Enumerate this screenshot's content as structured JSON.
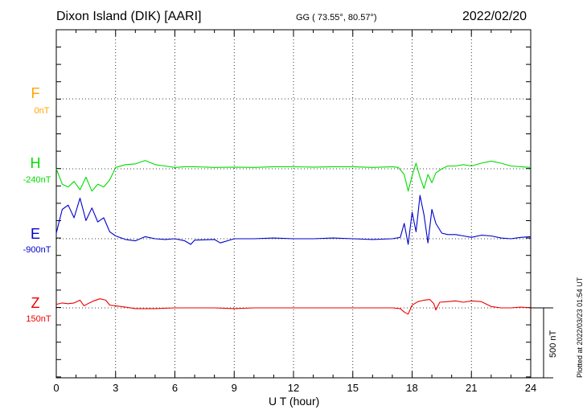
{
  "header": {
    "station": "Dixon Island (DIK)  [AARI]",
    "coords": "GG ( 73.55°,  80.57°)",
    "date": "2022/02/20"
  },
  "footer": {
    "plotted": "Plotted at 2022/03/23 01:54 UT"
  },
  "scale": {
    "label": "500 nT",
    "nT": 500
  },
  "components": [
    {
      "name": "F",
      "base": "0nT",
      "color": "#ffa500"
    },
    {
      "name": "H",
      "base": "-240nT",
      "color": "#00dd00"
    },
    {
      "name": "E",
      "base": "-900nT",
      "color": "#0000cc"
    },
    {
      "name": "Z",
      "base": "150nT",
      "color": "#ee0000"
    }
  ],
  "chart_data": {
    "type": "line",
    "xlabel": "U T (hour)",
    "xlim": [
      0,
      24
    ],
    "xticks": [
      0,
      3,
      6,
      9,
      12,
      15,
      18,
      21,
      24
    ],
    "grid": true,
    "series": [
      {
        "name": "H",
        "color": "#00dd00",
        "baseline_nT": -240,
        "x": [
          0,
          0.3,
          0.6,
          0.9,
          1.2,
          1.5,
          1.8,
          2.1,
          2.4,
          2.7,
          3.0,
          3.5,
          4.0,
          4.5,
          5.0,
          5.5,
          6.0,
          6.5,
          7.0,
          8.0,
          9.0,
          10.0,
          11.0,
          12.0,
          13.0,
          14.0,
          15.0,
          16.0,
          17.0,
          17.3,
          17.6,
          17.8,
          18.0,
          18.2,
          18.4,
          18.6,
          18.8,
          19.0,
          19.2,
          19.5,
          19.8,
          20.2,
          20.6,
          21.0,
          21.5,
          22.0,
          22.5,
          23.0,
          23.5,
          24.0
        ],
        "values": [
          0,
          -110,
          -130,
          -90,
          -150,
          -60,
          -160,
          -110,
          -130,
          -80,
          10,
          30,
          35,
          60,
          30,
          20,
          10,
          15,
          15,
          10,
          12,
          10,
          15,
          15,
          12,
          15,
          15,
          10,
          15,
          10,
          -40,
          -160,
          -50,
          40,
          -60,
          -140,
          -40,
          -100,
          -30,
          0,
          20,
          20,
          30,
          20,
          40,
          55,
          40,
          20,
          15,
          10
        ]
      },
      {
        "name": "E",
        "color": "#0000cc",
        "baseline_nT": -900,
        "x": [
          0,
          0.3,
          0.6,
          0.9,
          1.2,
          1.5,
          1.8,
          2.1,
          2.4,
          2.7,
          3.0,
          3.5,
          4.0,
          4.5,
          5.0,
          5.5,
          6.0,
          6.5,
          6.8,
          7.0,
          8.0,
          8.3,
          9.0,
          10.0,
          11.0,
          12.0,
          13.0,
          14.0,
          15.0,
          16.0,
          17.0,
          17.4,
          17.6,
          17.8,
          18.0,
          18.2,
          18.4,
          18.6,
          18.8,
          19.0,
          19.2,
          19.5,
          19.8,
          20.2,
          20.6,
          21.0,
          21.5,
          22.0,
          22.5,
          23.0,
          23.5,
          24.0
        ],
        "values": [
          40,
          210,
          240,
          150,
          290,
          130,
          220,
          120,
          150,
          50,
          20,
          -5,
          -15,
          15,
          0,
          -5,
          0,
          -15,
          -40,
          -10,
          -5,
          -30,
          0,
          0,
          5,
          0,
          0,
          5,
          0,
          -5,
          0,
          10,
          110,
          -40,
          190,
          50,
          310,
          170,
          -30,
          210,
          110,
          40,
          30,
          30,
          20,
          10,
          25,
          20,
          5,
          0,
          10,
          15
        ]
      },
      {
        "name": "Z",
        "color": "#ee0000",
        "baseline_nT": 150,
        "x": [
          0,
          0.3,
          0.6,
          0.9,
          1.2,
          1.4,
          1.6,
          1.9,
          2.2,
          2.5,
          2.7,
          3.0,
          3.5,
          4.0,
          5.0,
          6.0,
          7.0,
          8.0,
          9.0,
          10.0,
          11.0,
          12.0,
          13.0,
          14.0,
          15.0,
          16.0,
          17.0,
          17.4,
          17.6,
          17.8,
          18.0,
          18.3,
          18.6,
          18.9,
          19.1,
          19.2,
          19.4,
          19.8,
          20.2,
          20.6,
          21.0,
          21.5,
          22.0,
          22.5,
          23.0,
          23.5,
          24.0
        ],
        "values": [
          25,
          35,
          30,
          35,
          55,
          15,
          30,
          50,
          65,
          55,
          20,
          15,
          5,
          -5,
          -5,
          0,
          0,
          0,
          -5,
          0,
          0,
          0,
          0,
          0,
          0,
          0,
          0,
          -5,
          -30,
          -45,
          20,
          45,
          55,
          60,
          30,
          -15,
          40,
          45,
          50,
          40,
          50,
          45,
          10,
          0,
          0,
          5,
          0
        ]
      }
    ]
  }
}
